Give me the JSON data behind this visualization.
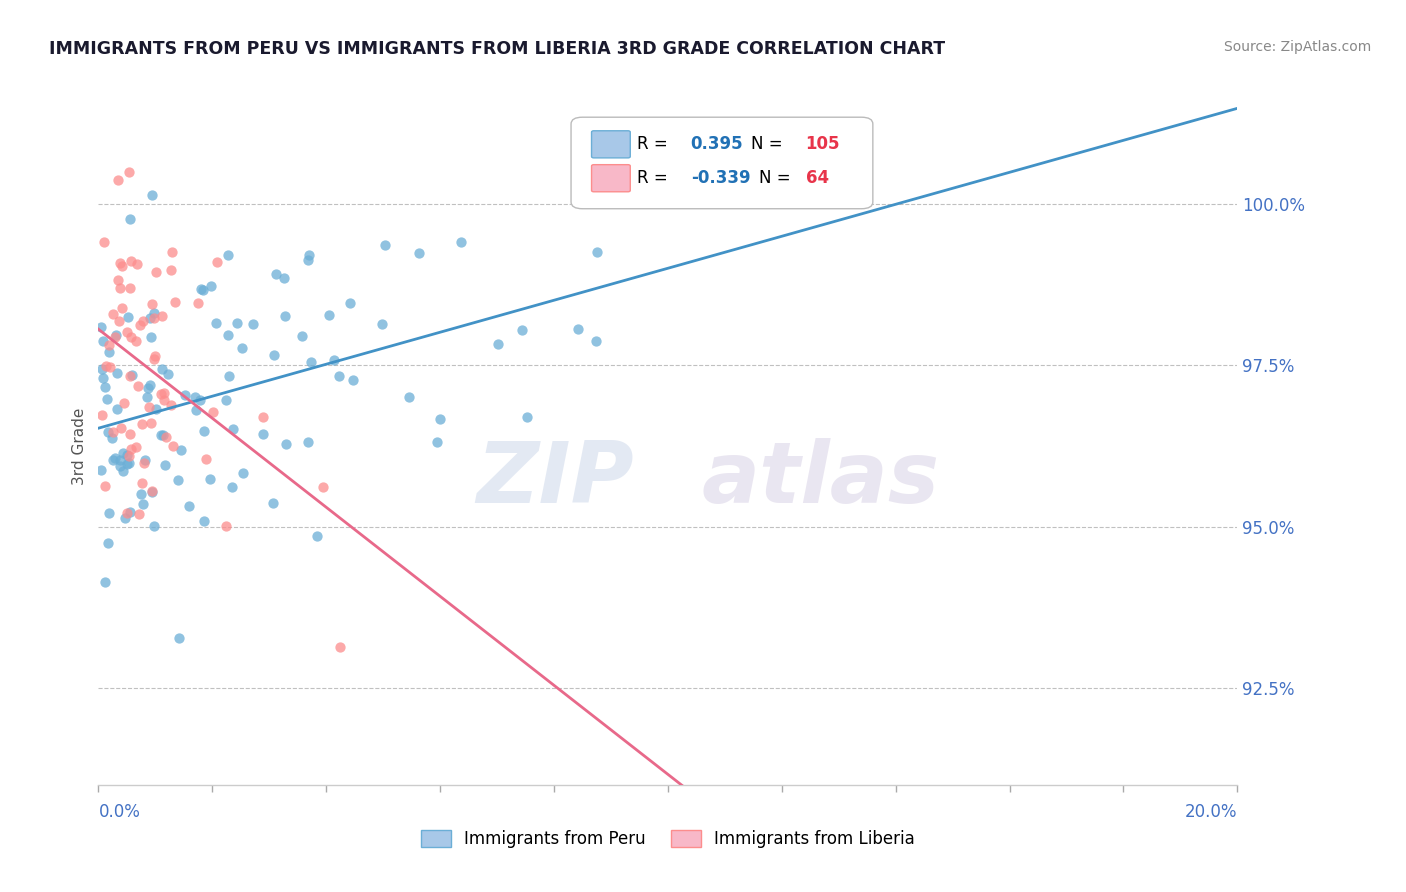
{
  "title": "IMMIGRANTS FROM PERU VS IMMIGRANTS FROM LIBERIA 3RD GRADE CORRELATION CHART",
  "source": "Source: ZipAtlas.com",
  "ylabel": "3rd Grade",
  "xlim": [
    0.0,
    20.0
  ],
  "ylim": [
    91.0,
    101.5
  ],
  "yticks": [
    92.5,
    95.0,
    97.5,
    100.0
  ],
  "ytick_labels": [
    "92.5%",
    "95.0%",
    "97.5%",
    "100.0%"
  ],
  "peru_color": "#6baed6",
  "liberia_color": "#fc8d8d",
  "peru_R": 0.395,
  "peru_N": 105,
  "liberia_R": -0.339,
  "liberia_N": 64,
  "peru_line_color": "#4292c6",
  "liberia_line_color": "#e8698a",
  "watermark_zip": "ZIP",
  "watermark_atlas": "atlas",
  "legend_R_color": "#2171b5",
  "legend_N_color": "#e8344a",
  "peru_seed": 42,
  "liberia_seed": 123,
  "tick_color": "#4472c4",
  "background_color": "#ffffff",
  "grid_color": "#c0c0c0"
}
